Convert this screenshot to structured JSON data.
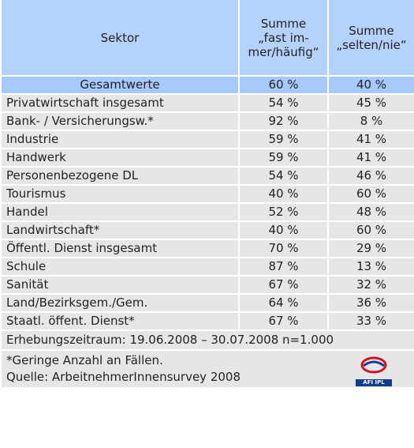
{
  "table": {
    "header": [
      "Sektor",
      "Summe „fast im­mer/häufig“",
      "Summe „sel­ten/nie“"
    ],
    "rows": [
      [
        "Gesamtwerte",
        "60 %",
        "40 %"
      ],
      [
        "Privatwirtschaft insgesamt",
        "54 %",
        "45 %"
      ],
      [
        "Bank- / Versicherungsw.*",
        "92 %",
        "8 %"
      ],
      [
        "Industrie",
        "59 %",
        "41 %"
      ],
      [
        "Handwerk",
        "59 %",
        "41 %"
      ],
      [
        "Personenbezogene DL",
        "54 %",
        "46 %"
      ],
      [
        "Tourismus",
        "40 %",
        "60 %"
      ],
      [
        "Handel",
        "52 %",
        "48 %"
      ],
      [
        "Landwirtschaft*",
        "40 %",
        "60 %"
      ],
      [
        "Öffentl. Dienst insgesamt",
        "70 %",
        "29 %"
      ],
      [
        "Schule",
        "87 %",
        "13 %"
      ],
      [
        "Sanität",
        "67 %",
        "32 %"
      ],
      [
        "Land/Bezirksgem./Gem.",
        "64 %",
        "36 %"
      ],
      [
        "Staatl. öffent. Dienst*",
        "67 %",
        "33 %"
      ]
    ],
    "survey": "Erhebungszeitraum: 19.06.2008 – 30.07.2008 n=1.000",
    "footnote": "*Geringe Anzahl an Fällen.",
    "source": "Quelle: ArbeitnehmerInnensurvey 2008",
    "logo": "AFI IPL"
  }
}
